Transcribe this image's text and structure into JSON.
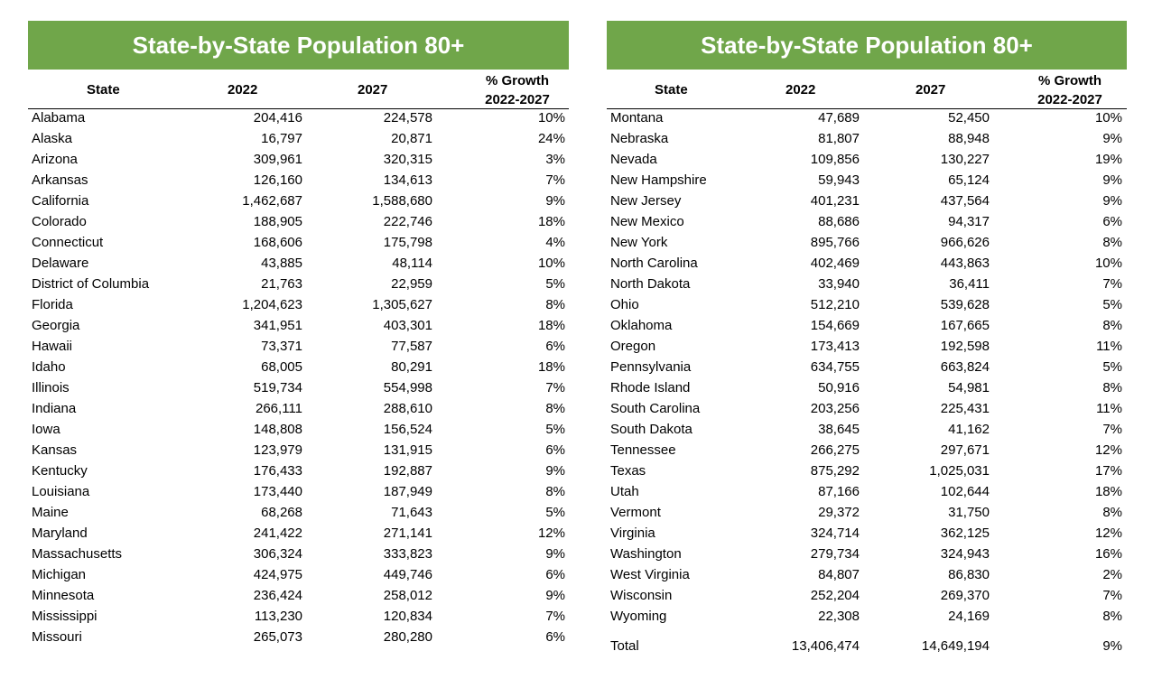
{
  "title": "State-by-State Population 80+",
  "columns": {
    "state": "State",
    "y2022": "2022",
    "y2027": "2027",
    "growth_line1": "% Growth",
    "growth_line2": "2022-2027"
  },
  "left_rows": [
    [
      "Alabama",
      "204,416",
      "224,578",
      "10%"
    ],
    [
      "Alaska",
      "16,797",
      "20,871",
      "24%"
    ],
    [
      "Arizona",
      "309,961",
      "320,315",
      "3%"
    ],
    [
      "Arkansas",
      "126,160",
      "134,613",
      "7%"
    ],
    [
      "California",
      "1,462,687",
      "1,588,680",
      "9%"
    ],
    [
      "Colorado",
      "188,905",
      "222,746",
      "18%"
    ],
    [
      "Connecticut",
      "168,606",
      "175,798",
      "4%"
    ],
    [
      "Delaware",
      "43,885",
      "48,114",
      "10%"
    ],
    [
      "District of Columbia",
      "21,763",
      "22,959",
      "5%"
    ],
    [
      "Florida",
      "1,204,623",
      "1,305,627",
      "8%"
    ],
    [
      "Georgia",
      "341,951",
      "403,301",
      "18%"
    ],
    [
      "Hawaii",
      "73,371",
      "77,587",
      "6%"
    ],
    [
      "Idaho",
      "68,005",
      "80,291",
      "18%"
    ],
    [
      "Illinois",
      "519,734",
      "554,998",
      "7%"
    ],
    [
      "Indiana",
      "266,111",
      "288,610",
      "8%"
    ],
    [
      "Iowa",
      "148,808",
      "156,524",
      "5%"
    ],
    [
      "Kansas",
      "123,979",
      "131,915",
      "6%"
    ],
    [
      "Kentucky",
      "176,433",
      "192,887",
      "9%"
    ],
    [
      "Louisiana",
      "173,440",
      "187,949",
      "8%"
    ],
    [
      "Maine",
      "68,268",
      "71,643",
      "5%"
    ],
    [
      "Maryland",
      "241,422",
      "271,141",
      "12%"
    ],
    [
      "Massachusetts",
      "306,324",
      "333,823",
      "9%"
    ],
    [
      "Michigan",
      "424,975",
      "449,746",
      "6%"
    ],
    [
      "Minnesota",
      "236,424",
      "258,012",
      "9%"
    ],
    [
      "Mississippi",
      "113,230",
      "120,834",
      "7%"
    ],
    [
      "Missouri",
      "265,073",
      "280,280",
      "6%"
    ]
  ],
  "right_rows": [
    [
      "Montana",
      "47,689",
      "52,450",
      "10%"
    ],
    [
      "Nebraska",
      "81,807",
      "88,948",
      "9%"
    ],
    [
      "Nevada",
      "109,856",
      "130,227",
      "19%"
    ],
    [
      "New Hampshire",
      "59,943",
      "65,124",
      "9%"
    ],
    [
      "New Jersey",
      "401,231",
      "437,564",
      "9%"
    ],
    [
      "New Mexico",
      "88,686",
      "94,317",
      "6%"
    ],
    [
      "New York",
      "895,766",
      "966,626",
      "8%"
    ],
    [
      "North Carolina",
      "402,469",
      "443,863",
      "10%"
    ],
    [
      "North Dakota",
      "33,940",
      "36,411",
      "7%"
    ],
    [
      "Ohio",
      "512,210",
      "539,628",
      "5%"
    ],
    [
      "Oklahoma",
      "154,669",
      "167,665",
      "8%"
    ],
    [
      "Oregon",
      "173,413",
      "192,598",
      "11%"
    ],
    [
      "Pennsylvania",
      "634,755",
      "663,824",
      "5%"
    ],
    [
      "Rhode Island",
      "50,916",
      "54,981",
      "8%"
    ],
    [
      "South Carolina",
      "203,256",
      "225,431",
      "11%"
    ],
    [
      "South Dakota",
      "38,645",
      "41,162",
      "7%"
    ],
    [
      "Tennessee",
      "266,275",
      "297,671",
      "12%"
    ],
    [
      "Texas",
      "875,292",
      "1,025,031",
      "17%"
    ],
    [
      "Utah",
      "87,166",
      "102,644",
      "18%"
    ],
    [
      "Vermont",
      "29,372",
      "31,750",
      "8%"
    ],
    [
      "Virginia",
      "324,714",
      "362,125",
      "12%"
    ],
    [
      "Washington",
      "279,734",
      "324,943",
      "16%"
    ],
    [
      "West Virginia",
      "84,807",
      "86,830",
      "2%"
    ],
    [
      "Wisconsin",
      "252,204",
      "269,370",
      "7%"
    ],
    [
      "Wyoming",
      "22,308",
      "24,169",
      "8%"
    ]
  ],
  "total": {
    "label": "Total",
    "y2022": "13,406,474",
    "y2027": "14,649,194",
    "growth": "9%"
  },
  "colors": {
    "banner": "#70a64a",
    "banner_text": "#ffffff"
  }
}
